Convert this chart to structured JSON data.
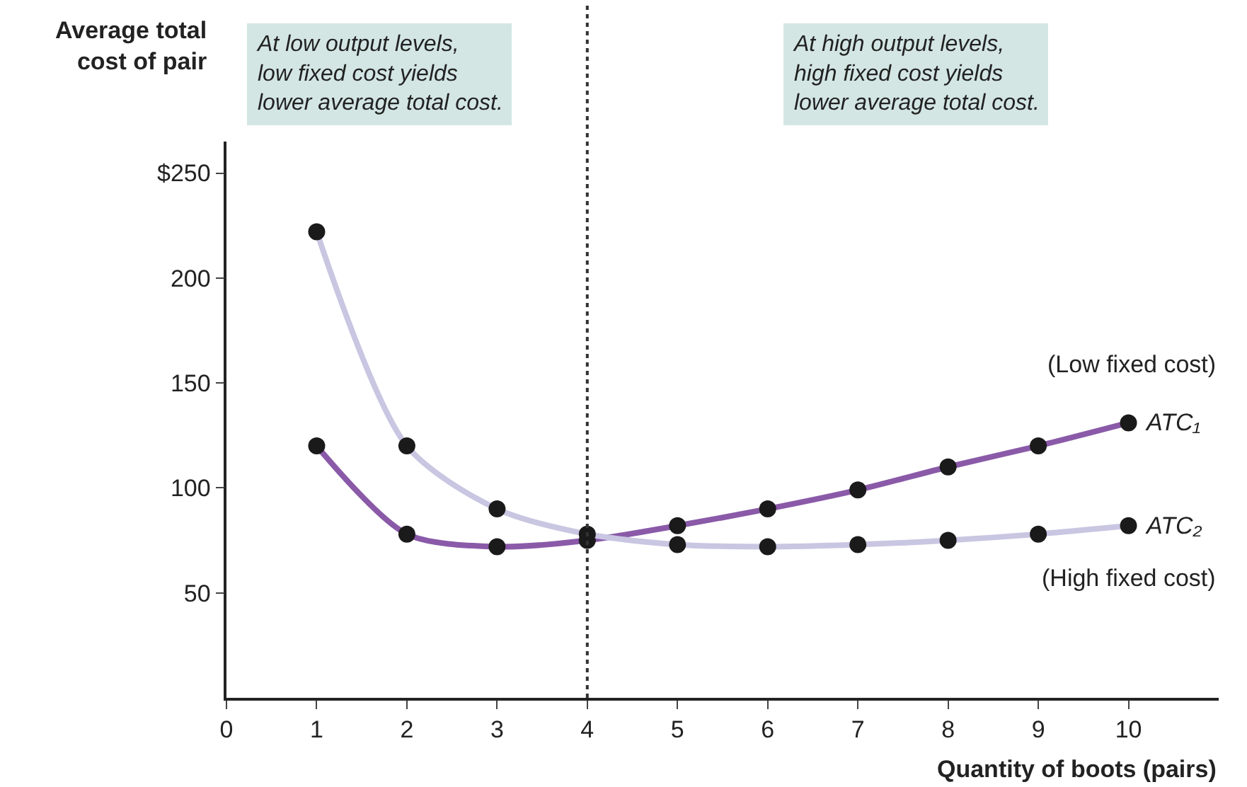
{
  "chart_data": {
    "type": "line",
    "xlabel": "Quantity of boots (pairs)",
    "ylabel": "Average total cost of pair",
    "x": [
      1,
      2,
      3,
      4,
      5,
      6,
      7,
      8,
      9,
      10
    ],
    "series": [
      {
        "name": "ATC₁",
        "color": "#8a5aa8",
        "values": [
          120,
          78,
          72,
          75,
          82,
          90,
          99,
          110,
          120,
          131
        ]
      },
      {
        "name": "ATC₂",
        "color": "#c9c6e2",
        "values": [
          222,
          120,
          90,
          78,
          73,
          72,
          73,
          75,
          78,
          82
        ]
      }
    ],
    "xlim": [
      0,
      11
    ],
    "xticks": [
      0,
      1,
      2,
      3,
      4,
      5,
      6,
      7,
      8,
      9,
      10
    ],
    "ylim": [
      0,
      265
    ],
    "yticks": [
      50,
      100,
      150,
      200,
      {
        "value": 250,
        "label": "$250"
      }
    ],
    "marker": "circle",
    "line_style": "solid",
    "legend": false,
    "ref_lines": [
      {
        "axis": "x",
        "value": 4,
        "line_style": "dotted",
        "color": "#333333"
      }
    ],
    "annotations": [
      "At low output levels,\nlow fixed cost yields\nlower average total cost.",
      "At high output levels,\nhigh fixed cost yields\nlower average total cost.",
      "(Low fixed cost)",
      "(High fixed cost)"
    ]
  }
}
